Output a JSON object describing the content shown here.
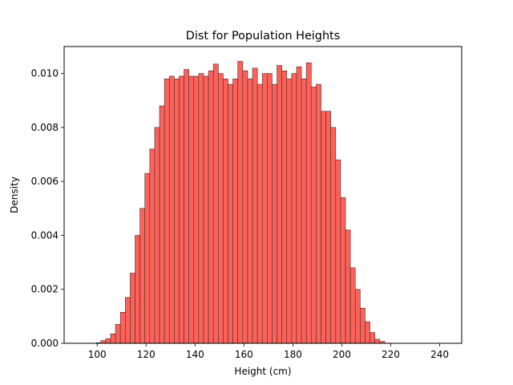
{
  "chart_data": {
    "type": "bar",
    "title": "Dist for Population Heights",
    "xlabel": "Height (cm)",
    "ylabel": "Density",
    "xlim": [
      86.5,
      249
    ],
    "ylim": [
      0,
      0.011
    ],
    "xticks": [
      100,
      120,
      140,
      160,
      180,
      200,
      220,
      240
    ],
    "xtick_labels": [
      "100",
      "120",
      "140",
      "160",
      "180",
      "200",
      "220",
      "240"
    ],
    "yticks": [
      0.0,
      0.002,
      0.004,
      0.006,
      0.008,
      0.01
    ],
    "ytick_labels": [
      "0.000",
      "0.002",
      "0.004",
      "0.006",
      "0.008",
      "0.010"
    ],
    "grid": false,
    "bin_start": 99.5,
    "bin_width": 2.0,
    "values": [
      2e-05,
      0.0001,
      0.00017,
      0.00035,
      0.0007,
      0.00115,
      0.0017,
      0.0026,
      0.004,
      0.005,
      0.0063,
      0.0072,
      0.008,
      0.0088,
      0.0098,
      0.0099,
      0.0098,
      0.0099,
      0.01015,
      0.0099,
      0.0099,
      0.01,
      0.0099,
      0.0101,
      0.01035,
      0.01,
      0.0098,
      0.0096,
      0.0098,
      0.01045,
      0.0101,
      0.0098,
      0.0102,
      0.0096,
      0.01,
      0.01,
      0.0096,
      0.0103,
      0.0101,
      0.0098,
      0.01,
      0.01025,
      0.0098,
      0.0104,
      0.0095,
      0.0096,
      0.0086,
      0.0086,
      0.008,
      0.0068,
      0.0054,
      0.0042,
      0.0028,
      0.002,
      0.0013,
      0.0008,
      0.0004,
      0.00015,
      7e-05,
      1e-05
    ],
    "bar_color": "#ff6159",
    "edge_color": "#333333"
  }
}
